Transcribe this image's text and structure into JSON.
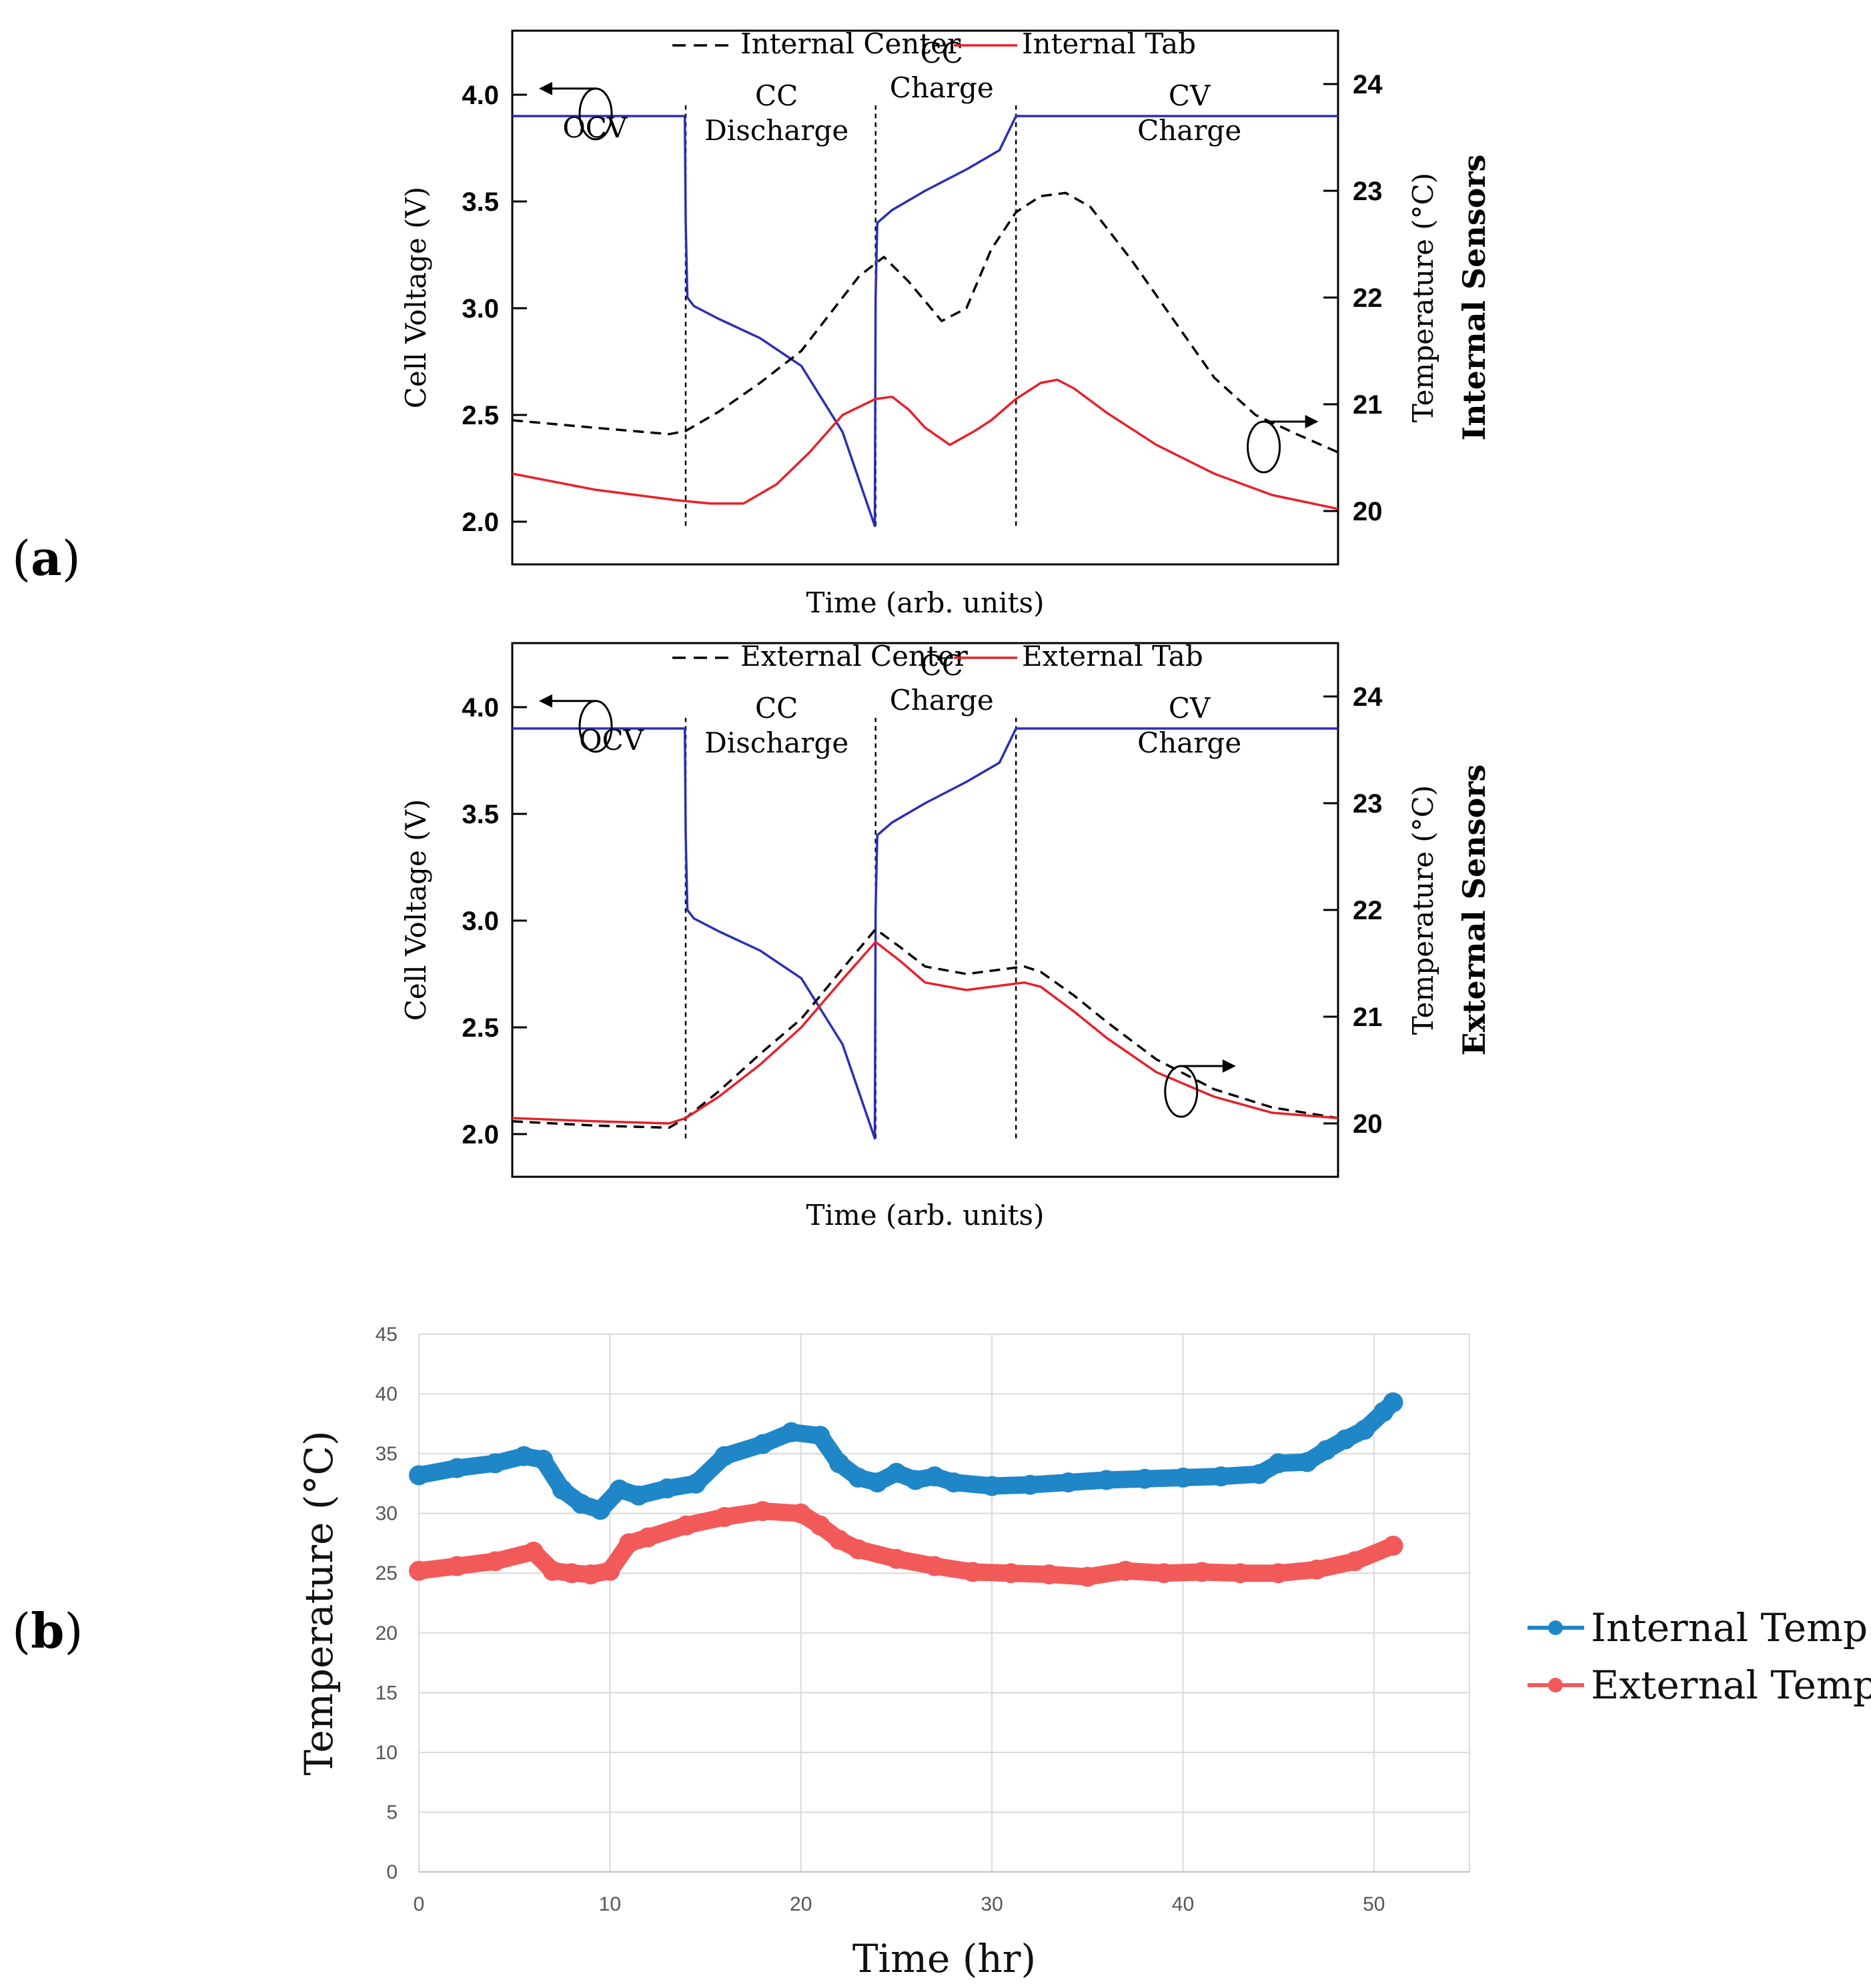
{
  "panel_labels": {
    "a": "a",
    "b": "b"
  },
  "chart_data": [
    {
      "id": "a_top",
      "type": "line",
      "title": "",
      "xlabel": "Time (arb. units)",
      "ylabel_left": "Cell Voltage (V)",
      "ylabel_right": "Temperature (°C)",
      "side_title": "Internal Sensors",
      "y_left_lim": [
        1.8,
        4.3
      ],
      "y_right_lim": [
        19.5,
        24.5
      ],
      "y_left_ticks": [
        "2.0",
        "2.5",
        "3.0",
        "3.5",
        "4.0"
      ],
      "y_right_ticks": [
        "20",
        "21",
        "22",
        "23",
        "24"
      ],
      "x_range": [
        0,
        100
      ],
      "phase_boundaries": [
        21,
        44,
        61
      ],
      "regions": [
        {
          "lines": [
            "OCV"
          ],
          "x": 10,
          "y": 3.8
        },
        {
          "lines": [
            "CC",
            "Discharge"
          ],
          "x": 32,
          "y": 3.95
        },
        {
          "lines": [
            "CC",
            "Charge"
          ],
          "x": 52,
          "y": 4.15
        },
        {
          "lines": [
            "CV",
            "Charge"
          ],
          "x": 82,
          "y": 3.95
        }
      ],
      "legend": [
        {
          "label": "Internal Center",
          "style": "dashed",
          "color": "#000000"
        },
        {
          "label": "Internal Tab",
          "style": "solid",
          "color": "#e8202a"
        }
      ],
      "series": [
        {
          "name": "Cell Voltage",
          "axis": "left",
          "color": "#2b2fb5",
          "style": "solid",
          "x": [
            0,
            20.9,
            21,
            21.2,
            22,
            25,
            30,
            35,
            40,
            43.9,
            44,
            44.2,
            46,
            50,
            55,
            59,
            61,
            100
          ],
          "y": [
            3.9,
            3.9,
            3.4,
            3.05,
            3.01,
            2.95,
            2.86,
            2.73,
            2.42,
            1.98,
            3.05,
            3.4,
            3.46,
            3.55,
            3.65,
            3.74,
            3.9,
            3.9
          ]
        },
        {
          "name": "Internal Center",
          "axis": "right",
          "color": "#000000",
          "style": "dashed",
          "x": [
            0,
            10,
            19,
            21,
            25,
            30,
            35,
            39,
            42,
            45,
            48,
            52,
            55,
            58,
            61,
            64,
            67,
            70,
            75,
            80,
            85,
            90,
            95,
            100
          ],
          "y": [
            20.85,
            20.78,
            20.72,
            20.75,
            20.93,
            21.2,
            21.5,
            21.9,
            22.2,
            22.38,
            22.15,
            21.78,
            21.9,
            22.45,
            22.8,
            22.95,
            22.98,
            22.85,
            22.35,
            21.8,
            21.25,
            20.9,
            20.72,
            20.55
          ]
        },
        {
          "name": "Internal Tab",
          "axis": "right",
          "color": "#e8202a",
          "style": "solid",
          "x": [
            0,
            10,
            20,
            24,
            28,
            32,
            36,
            40,
            44,
            46,
            48,
            50,
            53,
            56,
            58,
            61,
            64,
            66,
            68,
            72,
            78,
            85,
            92,
            100
          ],
          "y": [
            20.35,
            20.2,
            20.1,
            20.07,
            20.07,
            20.25,
            20.55,
            20.9,
            21.05,
            21.07,
            20.95,
            20.78,
            20.62,
            20.75,
            20.85,
            21.05,
            21.2,
            21.23,
            21.15,
            20.92,
            20.62,
            20.35,
            20.15,
            20.02
          ]
        }
      ]
    },
    {
      "id": "a_bottom",
      "type": "line",
      "title": "",
      "xlabel": "Time (arb. units)",
      "ylabel_left": "Cell Voltage (V)",
      "ylabel_right": "Temperature (°C)",
      "side_title": "External Sensors",
      "y_left_lim": [
        1.8,
        4.3
      ],
      "y_right_lim": [
        19.5,
        24.5
      ],
      "y_left_ticks": [
        "2.0",
        "2.5",
        "3.0",
        "3.5",
        "4.0"
      ],
      "y_right_ticks": [
        "20",
        "21",
        "22",
        "23",
        "24"
      ],
      "x_range": [
        0,
        100
      ],
      "phase_boundaries": [
        21,
        44,
        61
      ],
      "regions": [
        {
          "lines": [
            "OCV"
          ],
          "x": 12,
          "y": 3.8
        },
        {
          "lines": [
            "CC",
            "Discharge"
          ],
          "x": 32,
          "y": 3.95
        },
        {
          "lines": [
            "CC",
            "Charge"
          ],
          "x": 52,
          "y": 4.15
        },
        {
          "lines": [
            "CV",
            "Charge"
          ],
          "x": 82,
          "y": 3.95
        }
      ],
      "legend": [
        {
          "label": "External Center",
          "style": "dashed",
          "color": "#000000"
        },
        {
          "label": "External Tab",
          "style": "solid",
          "color": "#e8202a"
        }
      ],
      "series": [
        {
          "name": "Cell Voltage",
          "axis": "left",
          "color": "#2b2fb5",
          "style": "solid",
          "x": [
            0,
            20.9,
            21,
            21.2,
            22,
            25,
            30,
            35,
            40,
            43.9,
            44,
            44.2,
            46,
            50,
            55,
            59,
            61,
            100
          ],
          "y": [
            3.9,
            3.9,
            3.4,
            3.05,
            3.01,
            2.95,
            2.86,
            2.73,
            2.42,
            1.98,
            3.05,
            3.4,
            3.46,
            3.55,
            3.65,
            3.74,
            3.9,
            3.9
          ]
        },
        {
          "name": "External Center",
          "axis": "right",
          "color": "#000000",
          "style": "dashed",
          "x": [
            0,
            10,
            19,
            21,
            25,
            30,
            35,
            40,
            44,
            47,
            50,
            55,
            60,
            62,
            64,
            68,
            72,
            78,
            85,
            92,
            100
          ],
          "y": [
            20.02,
            19.98,
            19.96,
            20.05,
            20.3,
            20.65,
            20.98,
            21.45,
            21.82,
            21.65,
            21.47,
            21.4,
            21.45,
            21.47,
            21.42,
            21.2,
            20.95,
            20.6,
            20.32,
            20.15,
            20.05
          ]
        },
        {
          "name": "External Tab",
          "axis": "right",
          "color": "#e8202a",
          "style": "solid",
          "x": [
            0,
            10,
            19,
            21,
            25,
            30,
            35,
            40,
            44,
            47,
            50,
            55,
            60,
            62,
            64,
            68,
            72,
            78,
            85,
            92,
            100
          ],
          "y": [
            20.05,
            20.02,
            20.0,
            20.05,
            20.25,
            20.55,
            20.9,
            21.35,
            21.7,
            21.52,
            21.32,
            21.25,
            21.3,
            21.32,
            21.28,
            21.05,
            20.8,
            20.48,
            20.25,
            20.1,
            20.05
          ]
        }
      ]
    },
    {
      "id": "b",
      "type": "scatter",
      "title": "",
      "xlabel": "Time (hr)",
      "ylabel": "Temperature (°C)",
      "xlim": [
        0,
        55
      ],
      "ylim": [
        0,
        45
      ],
      "x_ticks": [
        0,
        10,
        20,
        30,
        40,
        50
      ],
      "y_ticks": [
        0,
        5,
        10,
        15,
        20,
        25,
        30,
        35,
        40,
        45
      ],
      "grid": true,
      "legend_position": "right",
      "series": [
        {
          "name": "Internal Temp.",
          "color": "#1f86c8",
          "x": [
            0,
            2,
            4,
            5.5,
            6.5,
            7.5,
            8.5,
            9.5,
            10.5,
            11.5,
            13,
            14.5,
            16,
            18,
            19.5,
            21,
            22,
            23,
            24,
            25,
            26,
            27,
            28,
            30,
            32,
            34,
            36,
            38,
            40,
            42,
            44,
            45,
            46.5,
            47.5,
            48.5,
            49.5,
            50.5,
            51
          ],
          "y": [
            33.2,
            33.8,
            34.2,
            34.8,
            34.5,
            32,
            30.8,
            30.3,
            32,
            31.5,
            32.1,
            32.5,
            34.8,
            35.8,
            36.8,
            36.5,
            34.2,
            33,
            32.6,
            33.4,
            32.8,
            33.1,
            32.6,
            32.3,
            32.4,
            32.6,
            32.8,
            32.9,
            33,
            33.1,
            33.3,
            34.2,
            34.3,
            35.3,
            36.2,
            37,
            38.5,
            39.3
          ]
        },
        {
          "name": "External Temp.",
          "color": "#f25a5a",
          "x": [
            0,
            2,
            4,
            6,
            7,
            8,
            9,
            10,
            11,
            12,
            14,
            16,
            18,
            20,
            21,
            22,
            23,
            25,
            27,
            29,
            31,
            33,
            35,
            37,
            39,
            41,
            43,
            45,
            47,
            49,
            51
          ],
          "y": [
            25.2,
            25.6,
            26,
            26.8,
            25.2,
            25,
            24.9,
            25.2,
            27.5,
            28,
            29,
            29.7,
            30.2,
            30,
            29,
            27.8,
            27,
            26.2,
            25.6,
            25.1,
            25,
            24.9,
            24.7,
            25.2,
            25,
            25.1,
            25,
            25,
            25.3,
            26,
            27.3
          ]
        }
      ]
    }
  ]
}
